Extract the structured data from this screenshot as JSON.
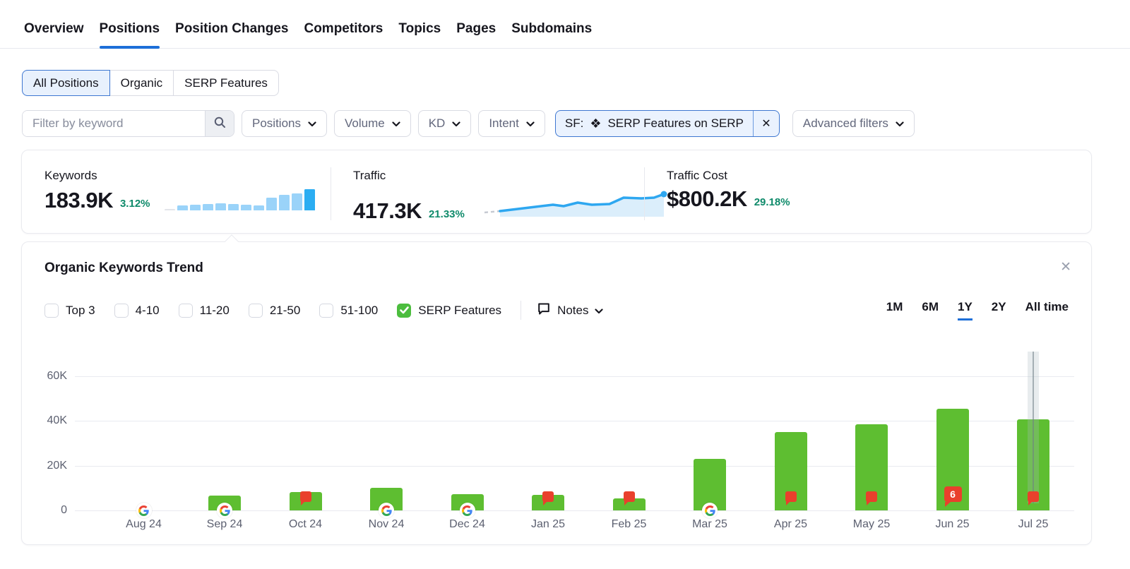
{
  "nav": {
    "tabs": [
      {
        "label": "Overview",
        "active": false
      },
      {
        "label": "Positions",
        "active": true
      },
      {
        "label": "Position Changes",
        "active": false
      },
      {
        "label": "Competitors",
        "active": false
      },
      {
        "label": "Topics",
        "active": false
      },
      {
        "label": "Pages",
        "active": false
      },
      {
        "label": "Subdomains",
        "active": false
      }
    ]
  },
  "view_tabs": {
    "options": [
      "All Positions",
      "Organic",
      "SERP Features"
    ],
    "selected": "All Positions"
  },
  "filters": {
    "keyword_placeholder": "Filter by keyword",
    "dropdowns": [
      "Positions",
      "Volume",
      "KD",
      "Intent"
    ],
    "sf_chip": {
      "prefix": "SF:",
      "icon_glyph": "❖",
      "label": "SERP Features on SERP",
      "close_glyph": "✕"
    },
    "advanced_label": "Advanced filters"
  },
  "stats": {
    "keywords": {
      "label": "Keywords",
      "value": "183.9K",
      "change": "3.12%",
      "spark": {
        "bars": [
          2,
          7,
          8,
          9,
          10,
          9,
          8,
          7,
          18,
          22,
          24,
          30
        ],
        "first_color": "#e3e5ea",
        "bar_color": "#9ad3f9",
        "last_color": "#2badf2"
      }
    },
    "traffic": {
      "label": "Traffic",
      "value": "417.3K",
      "change": "21.33%",
      "spark": {
        "dash": [
          [
            8,
            34
          ],
          [
            30,
            32
          ]
        ],
        "line": [
          [
            30,
            32
          ],
          [
            55,
            29
          ],
          [
            80,
            26
          ],
          [
            105,
            23
          ],
          [
            120,
            25
          ],
          [
            140,
            20
          ],
          [
            160,
            23
          ],
          [
            185,
            22
          ],
          [
            205,
            13
          ],
          [
            230,
            14
          ],
          [
            248,
            13
          ],
          [
            262,
            8
          ]
        ],
        "line_color": "#2ea7f0",
        "fill_color": "#dbeefb",
        "dash_color": "#c6cad2"
      }
    },
    "traffic_cost": {
      "label": "Traffic Cost",
      "value": "$800.2K",
      "change": "29.18%"
    }
  },
  "trend_panel": {
    "title": "Organic Keywords Trend",
    "close_glyph": "✕",
    "filters": [
      {
        "label": "Top 3",
        "checked": false
      },
      {
        "label": "4-10",
        "checked": false
      },
      {
        "label": "11-20",
        "checked": false
      },
      {
        "label": "21-50",
        "checked": false
      },
      {
        "label": "51-100",
        "checked": false
      },
      {
        "label": "SERP Features",
        "checked": true
      }
    ],
    "notes_label": "Notes",
    "ranges": [
      "1M",
      "6M",
      "1Y",
      "2Y",
      "All time"
    ],
    "selected_range": "1Y",
    "chart_data": {
      "type": "bar",
      "title": "Organic Keywords Trend",
      "categories": [
        "Aug 24",
        "Sep 24",
        "Oct 24",
        "Nov 24",
        "Dec 24",
        "Jan 25",
        "Feb 25",
        "Mar 25",
        "Apr 25",
        "May 25",
        "Jun 25",
        "Jul 25"
      ],
      "values": [
        0,
        6500,
        8300,
        10000,
        7200,
        7000,
        5300,
        23000,
        35000,
        38500,
        45500,
        40500
      ],
      "series_name": "SERP Features keywords",
      "ylim": [
        0,
        60000
      ],
      "yticks": [
        {
          "v": 0,
          "label": "0"
        },
        {
          "v": 20000,
          "label": "20K"
        },
        {
          "v": 40000,
          "label": "40K"
        },
        {
          "v": 60000,
          "label": "60K"
        }
      ],
      "grid": true,
      "markers": [
        {
          "type": "google"
        },
        {
          "type": "google"
        },
        {
          "type": "note"
        },
        {
          "type": "google"
        },
        {
          "type": "google"
        },
        {
          "type": "note"
        },
        {
          "type": "note"
        },
        {
          "type": "google"
        },
        {
          "type": "note"
        },
        {
          "type": "note"
        },
        {
          "type": "note",
          "count": 6
        },
        {
          "type": "note"
        }
      ],
      "hover": {
        "index": 11
      },
      "bar_color": "#5ebe31",
      "note_color": "#e9402c"
    }
  },
  "colors": {
    "accent_blue": "#1d6fd8",
    "positive_green": "#0e8a6a",
    "chip_bg": "#eaf2fe",
    "chip_border": "#3e77d1",
    "grid_gray": "#e9eaf0"
  }
}
